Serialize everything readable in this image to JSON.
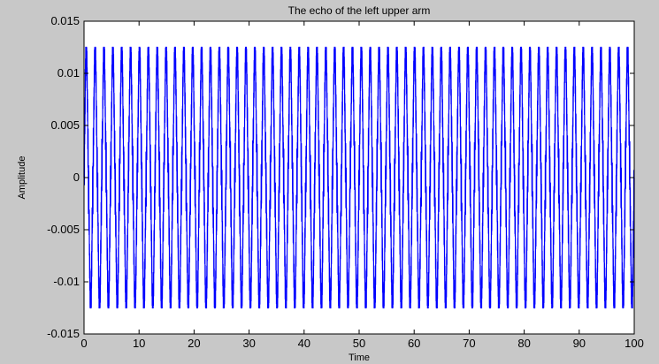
{
  "chart_data": {
    "type": "line",
    "title": "The echo of the left upper arm",
    "xlabel": "Time",
    "ylabel": "Amplitude",
    "xlim": [
      0,
      100
    ],
    "ylim": [
      -0.015,
      0.015
    ],
    "xticks": [
      0,
      10,
      20,
      30,
      40,
      50,
      60,
      70,
      80,
      90,
      100
    ],
    "yticks": [
      -0.015,
      -0.01,
      -0.005,
      0,
      0.005,
      0.01,
      0.015
    ],
    "xtick_labels": [
      "0",
      "10",
      "20",
      "30",
      "40",
      "50",
      "60",
      "70",
      "80",
      "90",
      "100"
    ],
    "ytick_labels": [
      "-0.015",
      "-0.01",
      "-0.005",
      "0",
      "0.005",
      "0.01",
      "0.015"
    ],
    "grid": false,
    "series": [
      {
        "color": "#0000ff",
        "signal": {
          "x_start": 0,
          "x_end": 100,
          "carrier_cycles_per_time_unit": 0.62,
          "peak_amplitude": 0.0125,
          "inner_oscillation_amplitude": 0.003
        }
      }
    ]
  }
}
